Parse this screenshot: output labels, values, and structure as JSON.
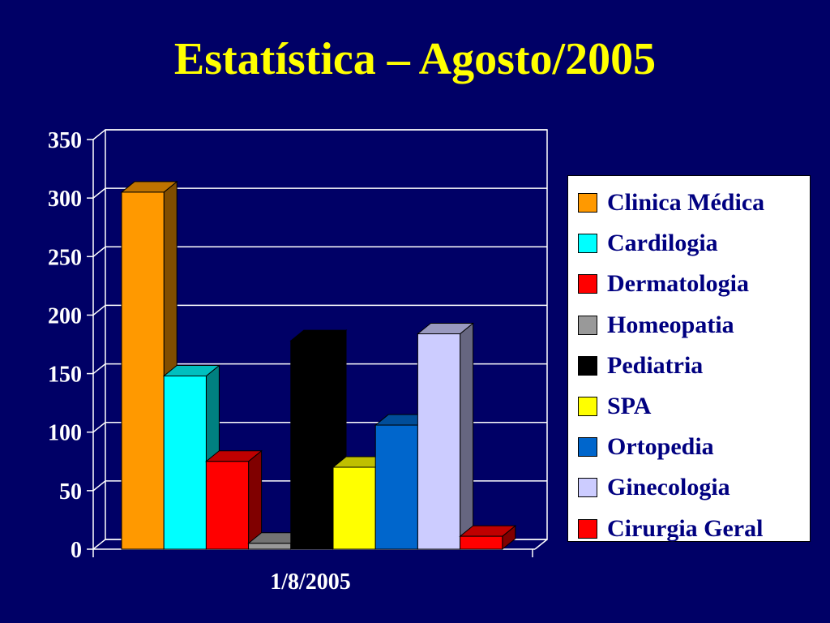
{
  "title": "Estatística – Agosto/2005",
  "chart_data": {
    "type": "bar",
    "title": "Estatística – Agosto/2005",
    "categories": [
      "1/8/2005"
    ],
    "series": [
      {
        "name": "Clinica Médica",
        "values": [
          305
        ],
        "color": "#ff9900"
      },
      {
        "name": "Cardilogia",
        "values": [
          148
        ],
        "color": "#00ffff"
      },
      {
        "name": "Dermatologia",
        "values": [
          75
        ],
        "color": "#ff0000"
      },
      {
        "name": "Homeopatia",
        "values": [
          5
        ],
        "color": "#999999"
      },
      {
        "name": "Pediatria",
        "values": [
          178
        ],
        "color": "#000000"
      },
      {
        "name": "SPA",
        "values": [
          70
        ],
        "color": "#ffff00"
      },
      {
        "name": "Ortopedia",
        "values": [
          106
        ],
        "color": "#0066cc"
      },
      {
        "name": "Ginecologia",
        "values": [
          184
        ],
        "color": "#ccccff"
      },
      {
        "name": "Cirurgia Geral",
        "values": [
          11
        ],
        "color": "#ff0000"
      }
    ],
    "y_ticks": [
      "0",
      "50",
      "100",
      "150",
      "200",
      "250",
      "300",
      "350"
    ],
    "ylim": [
      0,
      350
    ],
    "grid": true,
    "legend_position": "right"
  }
}
